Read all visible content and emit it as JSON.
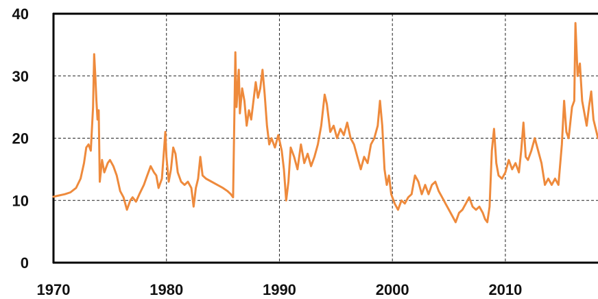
{
  "chart_data": {
    "type": "line",
    "title": "",
    "xlabel": "",
    "ylabel": "",
    "xlim": [
      1970,
      2018.2
    ],
    "ylim": [
      0,
      40
    ],
    "x_ticks": [
      "1970",
      "1980",
      "1990",
      "2000",
      "2010"
    ],
    "x_tick_values": [
      1970,
      1980,
      1990,
      2000,
      2010
    ],
    "y_ticks": [
      "0",
      "10",
      "20",
      "30",
      "40"
    ],
    "y_tick_values": [
      0,
      10,
      20,
      30,
      40
    ],
    "grid": "dashed",
    "legend": "none",
    "series": [
      {
        "color": "#ee8a3c",
        "points": [
          [
            1970.0,
            10.6
          ],
          [
            1970.5,
            10.8
          ],
          [
            1971.0,
            11.0
          ],
          [
            1971.5,
            11.3
          ],
          [
            1972.0,
            12.0
          ],
          [
            1972.4,
            13.5
          ],
          [
            1972.7,
            16.0
          ],
          [
            1972.9,
            18.5
          ],
          [
            1973.1,
            19.0
          ],
          [
            1973.3,
            18.0
          ],
          [
            1973.5,
            25.0
          ],
          [
            1973.6,
            33.5
          ],
          [
            1973.7,
            30.0
          ],
          [
            1973.8,
            26.0
          ],
          [
            1973.9,
            23.0
          ],
          [
            1974.0,
            24.5
          ],
          [
            1974.1,
            13.0
          ],
          [
            1974.3,
            16.5
          ],
          [
            1974.5,
            14.5
          ],
          [
            1974.8,
            16.0
          ],
          [
            1975.0,
            16.5
          ],
          [
            1975.3,
            15.5
          ],
          [
            1975.6,
            14.0
          ],
          [
            1975.9,
            11.5
          ],
          [
            1976.2,
            10.5
          ],
          [
            1976.5,
            8.5
          ],
          [
            1976.8,
            10.0
          ],
          [
            1977.0,
            10.5
          ],
          [
            1977.3,
            9.8
          ],
          [
            1977.6,
            11.0
          ],
          [
            1978.0,
            12.5
          ],
          [
            1978.3,
            14.0
          ],
          [
            1978.6,
            15.5
          ],
          [
            1978.9,
            14.5
          ],
          [
            1979.1,
            14.0
          ],
          [
            1979.3,
            12.0
          ],
          [
            1979.6,
            13.5
          ],
          [
            1979.9,
            21.0
          ],
          [
            1980.0,
            17.0
          ],
          [
            1980.2,
            13.0
          ],
          [
            1980.4,
            15.0
          ],
          [
            1980.6,
            18.5
          ],
          [
            1980.8,
            17.5
          ],
          [
            1981.0,
            14.5
          ],
          [
            1981.3,
            13.0
          ],
          [
            1981.6,
            12.5
          ],
          [
            1981.9,
            13.0
          ],
          [
            1982.2,
            12.0
          ],
          [
            1982.4,
            9.0
          ],
          [
            1982.6,
            12.0
          ],
          [
            1982.8,
            13.5
          ],
          [
            1983.0,
            17.0
          ],
          [
            1983.2,
            14.0
          ],
          [
            1983.5,
            13.5
          ],
          [
            1984.0,
            13.0
          ],
          [
            1984.5,
            12.5
          ],
          [
            1985.0,
            12.0
          ],
          [
            1985.4,
            11.5
          ],
          [
            1985.7,
            11.0
          ],
          [
            1985.9,
            10.5
          ],
          [
            1986.1,
            33.8
          ],
          [
            1986.2,
            25.0
          ],
          [
            1986.4,
            31.0
          ],
          [
            1986.5,
            24.0
          ],
          [
            1986.7,
            28.0
          ],
          [
            1986.9,
            26.0
          ],
          [
            1987.1,
            22.0
          ],
          [
            1987.3,
            24.5
          ],
          [
            1987.5,
            23.0
          ],
          [
            1987.7,
            26.0
          ],
          [
            1987.9,
            29.0
          ],
          [
            1988.1,
            26.5
          ],
          [
            1988.3,
            28.0
          ],
          [
            1988.5,
            31.0
          ],
          [
            1988.7,
            27.0
          ],
          [
            1988.9,
            22.0
          ],
          [
            1989.1,
            19.0
          ],
          [
            1989.3,
            20.0
          ],
          [
            1989.6,
            18.5
          ],
          [
            1989.9,
            20.5
          ],
          [
            1990.2,
            18.0
          ],
          [
            1990.4,
            15.0
          ],
          [
            1990.6,
            10.0
          ],
          [
            1990.8,
            13.0
          ],
          [
            1991.0,
            18.5
          ],
          [
            1991.3,
            17.0
          ],
          [
            1991.6,
            15.0
          ],
          [
            1991.9,
            19.0
          ],
          [
            1992.2,
            16.0
          ],
          [
            1992.5,
            17.5
          ],
          [
            1992.8,
            15.5
          ],
          [
            1993.1,
            17.0
          ],
          [
            1993.4,
            19.0
          ],
          [
            1993.7,
            22.0
          ],
          [
            1994.0,
            27.0
          ],
          [
            1994.2,
            25.5
          ],
          [
            1994.5,
            21.0
          ],
          [
            1994.8,
            22.0
          ],
          [
            1995.1,
            20.0
          ],
          [
            1995.4,
            21.5
          ],
          [
            1995.7,
            20.5
          ],
          [
            1996.0,
            22.5
          ],
          [
            1996.3,
            20.0
          ],
          [
            1996.6,
            19.0
          ],
          [
            1996.9,
            17.0
          ],
          [
            1997.2,
            15.0
          ],
          [
            1997.5,
            17.0
          ],
          [
            1997.8,
            16.0
          ],
          [
            1998.1,
            19.0
          ],
          [
            1998.4,
            20.0
          ],
          [
            1998.7,
            22.0
          ],
          [
            1998.9,
            26.0
          ],
          [
            1999.1,
            22.0
          ],
          [
            1999.3,
            15.0
          ],
          [
            1999.5,
            12.5
          ],
          [
            1999.7,
            14.0
          ],
          [
            1999.9,
            11.0
          ],
          [
            2000.2,
            9.5
          ],
          [
            2000.5,
            8.5
          ],
          [
            2000.8,
            10.0
          ],
          [
            2001.1,
            9.5
          ],
          [
            2001.4,
            10.5
          ],
          [
            2001.7,
            11.0
          ],
          [
            2002.0,
            14.0
          ],
          [
            2002.3,
            13.0
          ],
          [
            2002.6,
            11.0
          ],
          [
            2002.9,
            12.5
          ],
          [
            2003.2,
            11.0
          ],
          [
            2003.5,
            12.5
          ],
          [
            2003.8,
            13.0
          ],
          [
            2004.1,
            11.5
          ],
          [
            2004.4,
            10.5
          ],
          [
            2004.7,
            9.5
          ],
          [
            2005.0,
            8.5
          ],
          [
            2005.3,
            7.5
          ],
          [
            2005.6,
            6.5
          ],
          [
            2005.9,
            8.0
          ],
          [
            2006.2,
            8.5
          ],
          [
            2006.5,
            9.5
          ],
          [
            2006.8,
            10.5
          ],
          [
            2007.1,
            9.0
          ],
          [
            2007.4,
            8.5
          ],
          [
            2007.7,
            9.0
          ],
          [
            2008.0,
            8.0
          ],
          [
            2008.2,
            7.0
          ],
          [
            2008.4,
            6.5
          ],
          [
            2008.6,
            9.0
          ],
          [
            2008.8,
            18.0
          ],
          [
            2009.0,
            21.5
          ],
          [
            2009.2,
            16.0
          ],
          [
            2009.4,
            14.0
          ],
          [
            2009.7,
            13.5
          ],
          [
            2010.0,
            14.5
          ],
          [
            2010.3,
            16.5
          ],
          [
            2010.6,
            15.0
          ],
          [
            2010.9,
            16.0
          ],
          [
            2011.2,
            14.5
          ],
          [
            2011.4,
            18.0
          ],
          [
            2011.6,
            22.5
          ],
          [
            2011.8,
            17.0
          ],
          [
            2012.0,
            16.5
          ],
          [
            2012.3,
            18.0
          ],
          [
            2012.6,
            20.0
          ],
          [
            2012.9,
            18.0
          ],
          [
            2013.2,
            16.0
          ],
          [
            2013.5,
            12.5
          ],
          [
            2013.8,
            13.5
          ],
          [
            2014.1,
            12.5
          ],
          [
            2014.4,
            13.5
          ],
          [
            2014.7,
            12.5
          ],
          [
            2015.0,
            19.0
          ],
          [
            2015.2,
            26.0
          ],
          [
            2015.4,
            21.0
          ],
          [
            2015.6,
            20.0
          ],
          [
            2015.9,
            25.0
          ],
          [
            2016.1,
            26.0
          ],
          [
            2016.2,
            38.5
          ],
          [
            2016.4,
            30.0
          ],
          [
            2016.6,
            32.0
          ],
          [
            2016.8,
            26.0
          ],
          [
            2017.0,
            24.0
          ],
          [
            2017.2,
            22.0
          ],
          [
            2017.4,
            25.0
          ],
          [
            2017.6,
            27.5
          ],
          [
            2017.8,
            23.0
          ],
          [
            2018.0,
            21.5
          ],
          [
            2018.2,
            20.0
          ]
        ]
      }
    ]
  }
}
